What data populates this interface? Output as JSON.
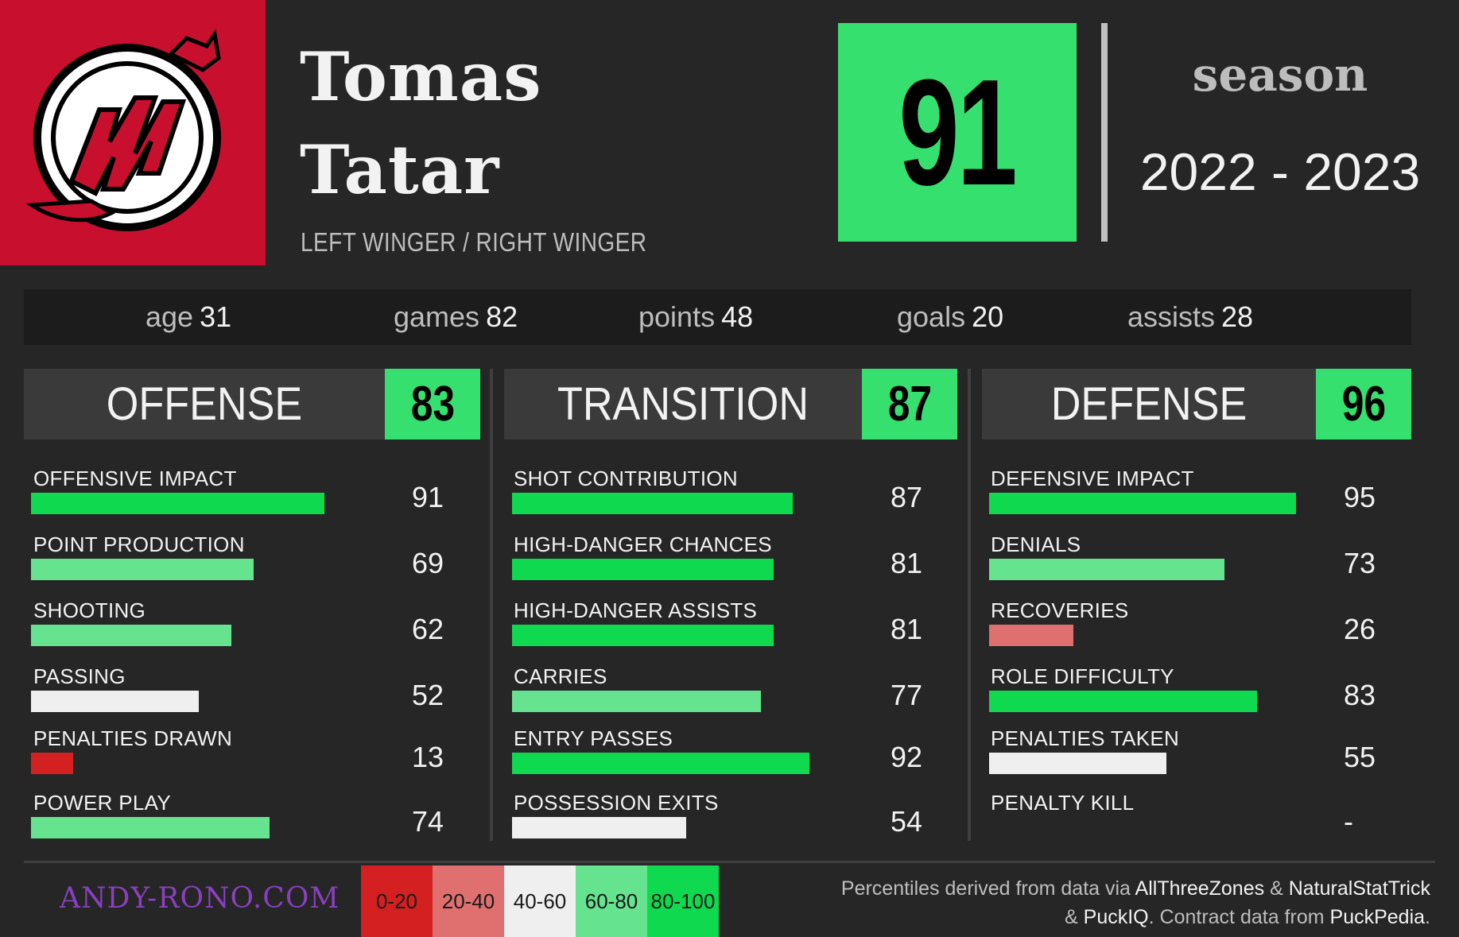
{
  "player": {
    "first_name": "Tomas",
    "last_name": "Tatar",
    "position": "LEFT WINGER / RIGHT WINGER",
    "overall": "91",
    "team_logo": "new-jersey-devils-logo"
  },
  "season": {
    "label": "season",
    "years": "2022 - 2023"
  },
  "stats": [
    {
      "label": "age",
      "value": "31"
    },
    {
      "label": "games",
      "value": "82"
    },
    {
      "label": "points",
      "value": "48"
    },
    {
      "label": "goals",
      "value": "20"
    },
    {
      "label": "assists",
      "value": "28"
    }
  ],
  "categories": [
    {
      "name": "OFFENSE",
      "score": "83",
      "metrics": [
        {
          "label": "OFFENSIVE IMPACT",
          "value": "91",
          "percentile": 91
        },
        {
          "label": "POINT PRODUCTION",
          "value": "69",
          "percentile": 69
        },
        {
          "label": "SHOOTING",
          "value": "62",
          "percentile": 62
        },
        {
          "label": "PASSING",
          "value": "52",
          "percentile": 52
        },
        {
          "label": "PENALTIES DRAWN",
          "value": "13",
          "percentile": 13
        },
        {
          "label": "POWER PLAY",
          "value": "74",
          "percentile": 74
        }
      ]
    },
    {
      "name": "TRANSITION",
      "score": "87",
      "metrics": [
        {
          "label": "SHOT CONTRIBUTION",
          "value": "87",
          "percentile": 87
        },
        {
          "label": "HIGH-DANGER CHANCES",
          "value": "81",
          "percentile": 81
        },
        {
          "label": "HIGH-DANGER ASSISTS",
          "value": "81",
          "percentile": 81
        },
        {
          "label": "CARRIES",
          "value": "77",
          "percentile": 77
        },
        {
          "label": "ENTRY PASSES",
          "value": "92",
          "percentile": 92
        },
        {
          "label": "POSSESSION EXITS",
          "value": "54",
          "percentile": 54
        }
      ]
    },
    {
      "name": "DEFENSE",
      "score": "96",
      "metrics": [
        {
          "label": "DEFENSIVE IMPACT",
          "value": "95",
          "percentile": 95
        },
        {
          "label": "DENIALS",
          "value": "73",
          "percentile": 73
        },
        {
          "label": "RECOVERIES",
          "value": "26",
          "percentile": 26
        },
        {
          "label": "ROLE DIFFICULTY",
          "value": "83",
          "percentile": 83
        },
        {
          "label": "PENALTIES TAKEN",
          "value": "55",
          "percentile": 55
        },
        {
          "label": "PENALTY KILL",
          "value": "-",
          "percentile": null
        }
      ]
    }
  ],
  "legend": [
    {
      "label": "0-20",
      "color": "#d42020"
    },
    {
      "label": "20-40",
      "color": "#e07070"
    },
    {
      "label": "40-60",
      "color": "#efefef"
    },
    {
      "label": "60-80",
      "color": "#66e38f"
    },
    {
      "label": "80-100",
      "color": "#0fd94f"
    }
  ],
  "footer": {
    "site": "ANDY-RONO.COM",
    "source_1": "Percentiles derived from data via",
    "source_allthreezones": "AllThreeZones",
    "source_amp1": "&",
    "source_naturalstattrick": "NaturalStatTrick",
    "source_amp2": "&",
    "source_puckiq": "PuckIQ",
    "source_2": ". Contract data from",
    "source_puckpedia": "PuckPedia",
    "source_end": "."
  }
}
